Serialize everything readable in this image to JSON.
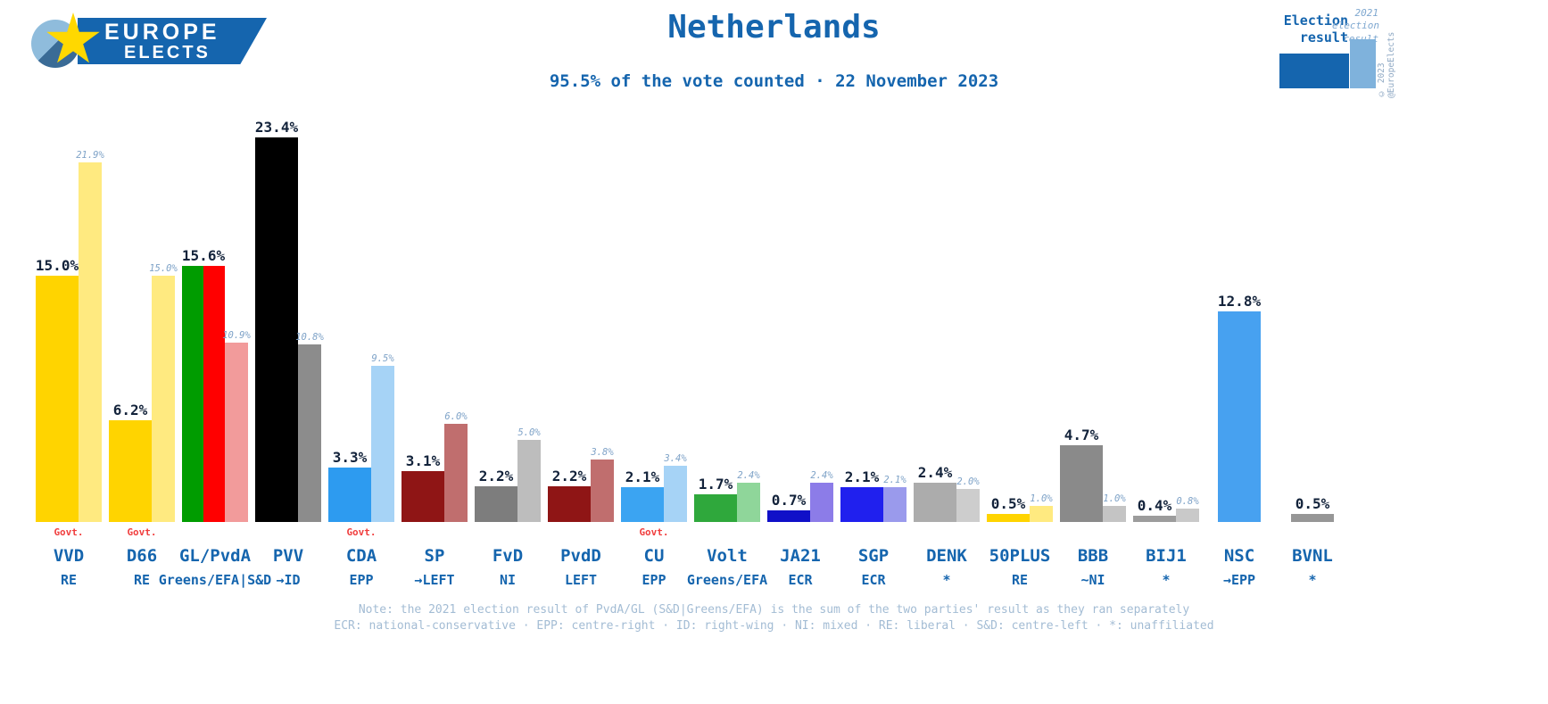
{
  "header": {
    "logo": {
      "line1": "EUROPE",
      "line2": "ELECTS"
    },
    "title": "Netherlands",
    "subtitle": "95.5% of the vote counted · 22 November 2023"
  },
  "legend": {
    "current_label": "Election result",
    "prev_label": "2021 election result",
    "copyright": "© 2023 @EuropeElects",
    "current_color": "#1565AE",
    "prev_color": "#7FB2DC"
  },
  "footer": {
    "note1": "Note: the 2021 election result of PvdA/GL (S&D|Greens/EFA) is the sum of the two parties' result as they ran separately",
    "note2": "ECR: national-conservative · EPP: centre-right · ID: right-wing · NI: mixed · RE: liberal · S&D: centre-left · *: unaffiliated"
  },
  "chart_data": {
    "type": "bar",
    "title": "Netherlands",
    "subtitle": "95.5% of the vote counted · 22 November 2023",
    "unit": "%",
    "ylim": [
      0,
      25
    ],
    "series_labels": [
      "Election result",
      "2021 election result"
    ],
    "parties": [
      {
        "name": "VVD",
        "group": "RE",
        "value": 15.0,
        "value_label": "15.0%",
        "prev": 21.9,
        "prev_label": "21.9%",
        "govt": "Govt.",
        "colors": [
          "#FFD400"
        ],
        "prev_color": "#FFEA80"
      },
      {
        "name": "D66",
        "group": "RE",
        "value": 6.2,
        "value_label": "6.2%",
        "prev": 15.0,
        "prev_label": "15.0%",
        "govt": "Govt.",
        "colors": [
          "#FFD400"
        ],
        "prev_color": "#FFEA80"
      },
      {
        "name": "GL/PvdA",
        "group": "Greens/EFA|S&D",
        "value": 15.6,
        "value_label": "15.6%",
        "prev": 10.9,
        "prev_label": "10.9%",
        "colors": [
          "#009C00",
          "#FF0000"
        ],
        "prev_color": "#F29B9B"
      },
      {
        "name": "PVV",
        "group": "→ID",
        "value": 23.4,
        "value_label": "23.4%",
        "prev": 10.8,
        "prev_label": "10.8%",
        "colors": [
          "#000000"
        ],
        "prev_color": "#8C8C8C"
      },
      {
        "name": "CDA",
        "group": "EPP",
        "value": 3.3,
        "value_label": "3.3%",
        "prev": 9.5,
        "prev_label": "9.5%",
        "govt": "Govt.",
        "colors": [
          "#2D9BF0"
        ],
        "prev_color": "#A6D3F6"
      },
      {
        "name": "SP",
        "group": "→LEFT",
        "value": 3.1,
        "value_label": "3.1%",
        "prev": 6.0,
        "prev_label": "6.0%",
        "colors": [
          "#8F1515"
        ],
        "prev_color": "#C06E6E"
      },
      {
        "name": "FvD",
        "group": "NI",
        "value": 2.2,
        "value_label": "2.2%",
        "prev": 5.0,
        "prev_label": "5.0%",
        "colors": [
          "#7D7D7D"
        ],
        "prev_color": "#BDBDBD"
      },
      {
        "name": "PvdD",
        "group": "LEFT",
        "value": 2.2,
        "value_label": "2.2%",
        "prev": 3.8,
        "prev_label": "3.8%",
        "colors": [
          "#8F1515"
        ],
        "prev_color": "#C06E6E"
      },
      {
        "name": "CU",
        "group": "EPP",
        "value": 2.1,
        "value_label": "2.1%",
        "prev": 3.4,
        "prev_label": "3.4%",
        "govt": "Govt.",
        "colors": [
          "#3BA4F2"
        ],
        "prev_color": "#A6D3F6"
      },
      {
        "name": "Volt",
        "group": "Greens/EFA",
        "value": 1.7,
        "value_label": "1.7%",
        "prev": 2.4,
        "prev_label": "2.4%",
        "colors": [
          "#2FA83C"
        ],
        "prev_color": "#8FD69A"
      },
      {
        "name": "JA21",
        "group": "ECR",
        "value": 0.7,
        "value_label": "0.7%",
        "prev": 2.4,
        "prev_label": "2.4%",
        "colors": [
          "#1010C8"
        ],
        "prev_color": "#8C7CE8"
      },
      {
        "name": "SGP",
        "group": "ECR",
        "value": 2.1,
        "value_label": "2.1%",
        "prev": 2.1,
        "prev_label": "2.1%",
        "colors": [
          "#2020EE"
        ],
        "prev_color": "#9A9AEC"
      },
      {
        "name": "DENK",
        "group": "*",
        "value": 2.4,
        "value_label": "2.4%",
        "prev": 2.0,
        "prev_label": "2.0%",
        "colors": [
          "#ACACAC"
        ],
        "prev_color": "#CDCDCD"
      },
      {
        "name": "50PLUS",
        "group": "RE",
        "value": 0.5,
        "value_label": "0.5%",
        "prev": 1.0,
        "prev_label": "1.0%",
        "colors": [
          "#FFD400"
        ],
        "prev_color": "#FFEA80"
      },
      {
        "name": "BBB",
        "group": "~NI",
        "value": 4.7,
        "value_label": "4.7%",
        "prev": 1.0,
        "prev_label": "1.0%",
        "colors": [
          "#8A8A8A"
        ],
        "prev_color": "#C4C4C4"
      },
      {
        "name": "BIJ1",
        "group": "*",
        "value": 0.4,
        "value_label": "0.4%",
        "prev": 0.8,
        "prev_label": "0.8%",
        "colors": [
          "#9C9C9C"
        ],
        "prev_color": "#C9C9C9"
      },
      {
        "name": "NSC",
        "group": "→EPP",
        "value": 12.8,
        "value_label": "12.8%",
        "colors": [
          "#47A1F0"
        ]
      },
      {
        "name": "BVNL",
        "group": "*",
        "value": 0.5,
        "value_label": "0.5%",
        "colors": [
          "#969696"
        ]
      }
    ]
  }
}
